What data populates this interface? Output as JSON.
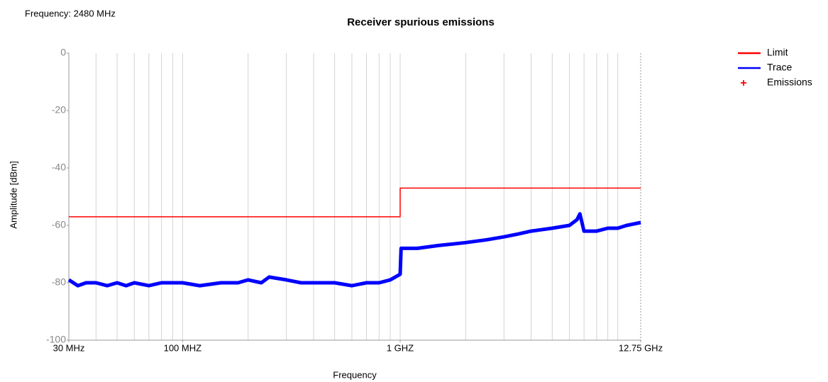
{
  "chart_data": {
    "type": "line",
    "title": "Receiver spurious emissions",
    "annotation": "Frequency: 2480 MHz",
    "xlabel": "Frequency",
    "ylabel": "Amplitude [dBm]",
    "xscale": "log",
    "xlim": [
      30,
      12750
    ],
    "ylim": [
      -100,
      0
    ],
    "yticks": [
      -100,
      -80,
      -60,
      -40,
      -20,
      0
    ],
    "xticks": [
      {
        "value": 30,
        "label": "30 MHz"
      },
      {
        "value": 100,
        "label": "100 MHZ"
      },
      {
        "value": 1000,
        "label": "1 GHZ"
      },
      {
        "value": 12750,
        "label": "12.75 GHz"
      }
    ],
    "xgrid": [
      40,
      50,
      60,
      70,
      80,
      90,
      100,
      200,
      300,
      400,
      500,
      600,
      700,
      800,
      900,
      1000,
      2000,
      3000,
      4000,
      5000,
      6000,
      7000,
      8000,
      9000,
      10000
    ],
    "legend": "top-right",
    "series": [
      {
        "name": "Limit",
        "color": "#ff0000",
        "x": [
          30,
          1000,
          1000,
          12750
        ],
        "values": [
          -57,
          -57,
          -47,
          -47
        ]
      },
      {
        "name": "Trace",
        "color": "#0000ff",
        "x": [
          30,
          33,
          36,
          40,
          45,
          50,
          55,
          60,
          70,
          80,
          90,
          100,
          120,
          150,
          180,
          200,
          230,
          250,
          300,
          350,
          400,
          500,
          600,
          700,
          800,
          900,
          1000,
          1010,
          1200,
          1500,
          2000,
          2500,
          3000,
          3500,
          4000,
          5000,
          6000,
          6500,
          6700,
          7000,
          7500,
          8000,
          9000,
          10000,
          11000,
          12750
        ],
        "values": [
          -79,
          -81,
          -80,
          -80,
          -81,
          -80,
          -81,
          -80,
          -81,
          -80,
          -80,
          -80,
          -81,
          -80,
          -80,
          -79,
          -80,
          -78,
          -79,
          -80,
          -80,
          -80,
          -81,
          -80,
          -80,
          -79,
          -77,
          -68,
          -68,
          -67,
          -66,
          -65,
          -64,
          -63,
          -62,
          -61,
          -60,
          -58,
          -56,
          -62,
          -62,
          -62,
          -61,
          -61,
          -60,
          -59
        ]
      },
      {
        "name": "Emissions",
        "color": "#ff0000",
        "x": [],
        "values": []
      }
    ]
  }
}
